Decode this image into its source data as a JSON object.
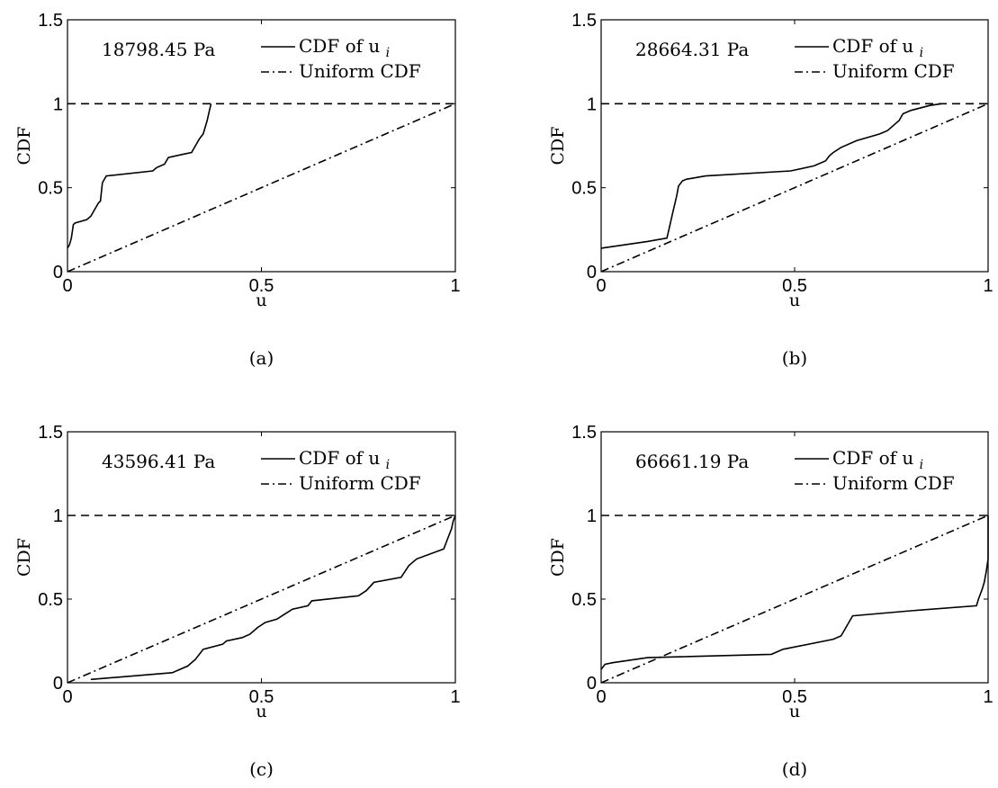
{
  "chart_data": [
    {
      "type": "line",
      "caption": "(a)",
      "annotation": "18798.45 Pa",
      "xlabel": "u",
      "ylabel": "CDF",
      "xlim": [
        0,
        1
      ],
      "ylim": [
        0,
        1.5
      ],
      "xticks": [
        "0",
        "0.5",
        "1"
      ],
      "yticks": [
        "0",
        "0.5",
        "1",
        "1.5"
      ],
      "legend_position": "top-right",
      "legend": {
        "sub": "i",
        "label": "CDF of u",
        "uniform": "Uniform CDF"
      },
      "series": [
        {
          "style": "solid",
          "x": [
            0,
            0.005,
            0.01,
            0.015,
            0.02,
            0.05,
            0.06,
            0.07,
            0.08,
            0.085,
            0.09,
            0.1,
            0.22,
            0.23,
            0.25,
            0.26,
            0.3,
            0.32,
            0.33,
            0.34,
            0.35,
            0.355,
            0.36,
            0.365,
            0.37
          ],
          "y": [
            0.14,
            0.16,
            0.2,
            0.28,
            0.29,
            0.31,
            0.33,
            0.37,
            0.41,
            0.42,
            0.53,
            0.57,
            0.6,
            0.62,
            0.64,
            0.68,
            0.7,
            0.71,
            0.75,
            0.79,
            0.82,
            0.86,
            0.9,
            0.95,
            1.0
          ]
        },
        {
          "style": "dashdot",
          "x": [
            0,
            1
          ],
          "y": [
            0,
            1
          ]
        },
        {
          "style": "dashed",
          "x": [
            0,
            1
          ],
          "y": [
            1,
            1
          ]
        }
      ]
    },
    {
      "type": "line",
      "caption": "(b)",
      "annotation": "28664.31 Pa",
      "xlabel": "u",
      "ylabel": "CDF",
      "xlim": [
        0,
        1
      ],
      "ylim": [
        0,
        1.5
      ],
      "xticks": [
        "0",
        "0.5",
        "1"
      ],
      "yticks": [
        "0",
        "0.5",
        "1",
        "1.5"
      ],
      "legend_position": "top-right",
      "legend": {
        "sub": "i",
        "label": "CDF of u",
        "uniform": "Uniform CDF"
      },
      "series": [
        {
          "style": "solid",
          "x": [
            0,
            0.12,
            0.17,
            0.175,
            0.18,
            0.185,
            0.19,
            0.195,
            0.2,
            0.21,
            0.22,
            0.27,
            0.49,
            0.55,
            0.58,
            0.59,
            0.6,
            0.62,
            0.66,
            0.72,
            0.74,
            0.76,
            0.77,
            0.78,
            0.8,
            0.85,
            0.88
          ],
          "y": [
            0.14,
            0.18,
            0.2,
            0.25,
            0.3,
            0.35,
            0.4,
            0.45,
            0.51,
            0.54,
            0.55,
            0.57,
            0.6,
            0.63,
            0.66,
            0.69,
            0.71,
            0.74,
            0.78,
            0.82,
            0.84,
            0.88,
            0.9,
            0.94,
            0.96,
            0.99,
            1.0
          ]
        },
        {
          "style": "dashdot",
          "x": [
            0,
            1
          ],
          "y": [
            0,
            1
          ]
        },
        {
          "style": "dashed",
          "x": [
            0,
            1
          ],
          "y": [
            1,
            1
          ]
        }
      ]
    },
    {
      "type": "line",
      "caption": "(c)",
      "annotation": "43596.41 Pa",
      "xlabel": "u",
      "ylabel": "CDF",
      "xlim": [
        0,
        1
      ],
      "ylim": [
        0,
        1.5
      ],
      "xticks": [
        "0",
        "0.5",
        "1"
      ],
      "yticks": [
        "0",
        "0.5",
        "1",
        "1.5"
      ],
      "legend_position": "top-right",
      "legend": {
        "sub": "i",
        "label": "CDF of u",
        "uniform": "Uniform CDF"
      },
      "series": [
        {
          "style": "solid",
          "x": [
            0.06,
            0.27,
            0.31,
            0.33,
            0.35,
            0.4,
            0.41,
            0.45,
            0.47,
            0.49,
            0.51,
            0.54,
            0.56,
            0.58,
            0.62,
            0.63,
            0.75,
            0.77,
            0.79,
            0.86,
            0.88,
            0.9,
            0.97,
            0.98,
            0.99,
            0.995,
            1.0
          ],
          "y": [
            0.02,
            0.06,
            0.1,
            0.14,
            0.2,
            0.23,
            0.25,
            0.27,
            0.29,
            0.33,
            0.36,
            0.38,
            0.41,
            0.44,
            0.46,
            0.49,
            0.52,
            0.55,
            0.6,
            0.63,
            0.7,
            0.74,
            0.8,
            0.86,
            0.92,
            0.97,
            1.0
          ]
        },
        {
          "style": "dashdot",
          "x": [
            0,
            1
          ],
          "y": [
            0,
            1
          ]
        },
        {
          "style": "dashed",
          "x": [
            0,
            1
          ],
          "y": [
            1,
            1
          ]
        }
      ]
    },
    {
      "type": "line",
      "caption": "(d)",
      "annotation": "66661.19 Pa",
      "xlabel": "u",
      "ylabel": "CDF",
      "xlim": [
        0,
        1
      ],
      "ylim": [
        0,
        1.5
      ],
      "xticks": [
        "0",
        "0.5",
        "1"
      ],
      "yticks": [
        "0",
        "0.5",
        "1",
        "1.5"
      ],
      "legend_position": "top-right",
      "legend": {
        "sub": "i",
        "label": "CDF of u",
        "uniform": "Uniform CDF"
      },
      "series": [
        {
          "style": "solid",
          "x": [
            0,
            0.01,
            0.03,
            0.12,
            0.44,
            0.47,
            0.6,
            0.62,
            0.63,
            0.64,
            0.65,
            0.8,
            0.97,
            0.975,
            0.98,
            0.985,
            0.99,
            0.995,
            1.0,
            1.0
          ],
          "y": [
            0.08,
            0.11,
            0.12,
            0.15,
            0.17,
            0.2,
            0.26,
            0.28,
            0.32,
            0.36,
            0.4,
            0.43,
            0.46,
            0.5,
            0.53,
            0.56,
            0.6,
            0.66,
            0.74,
            1.0
          ]
        },
        {
          "style": "dashdot",
          "x": [
            0,
            1
          ],
          "y": [
            0,
            1
          ]
        },
        {
          "style": "dashed",
          "x": [
            0,
            1
          ],
          "y": [
            1,
            1
          ]
        }
      ]
    }
  ]
}
